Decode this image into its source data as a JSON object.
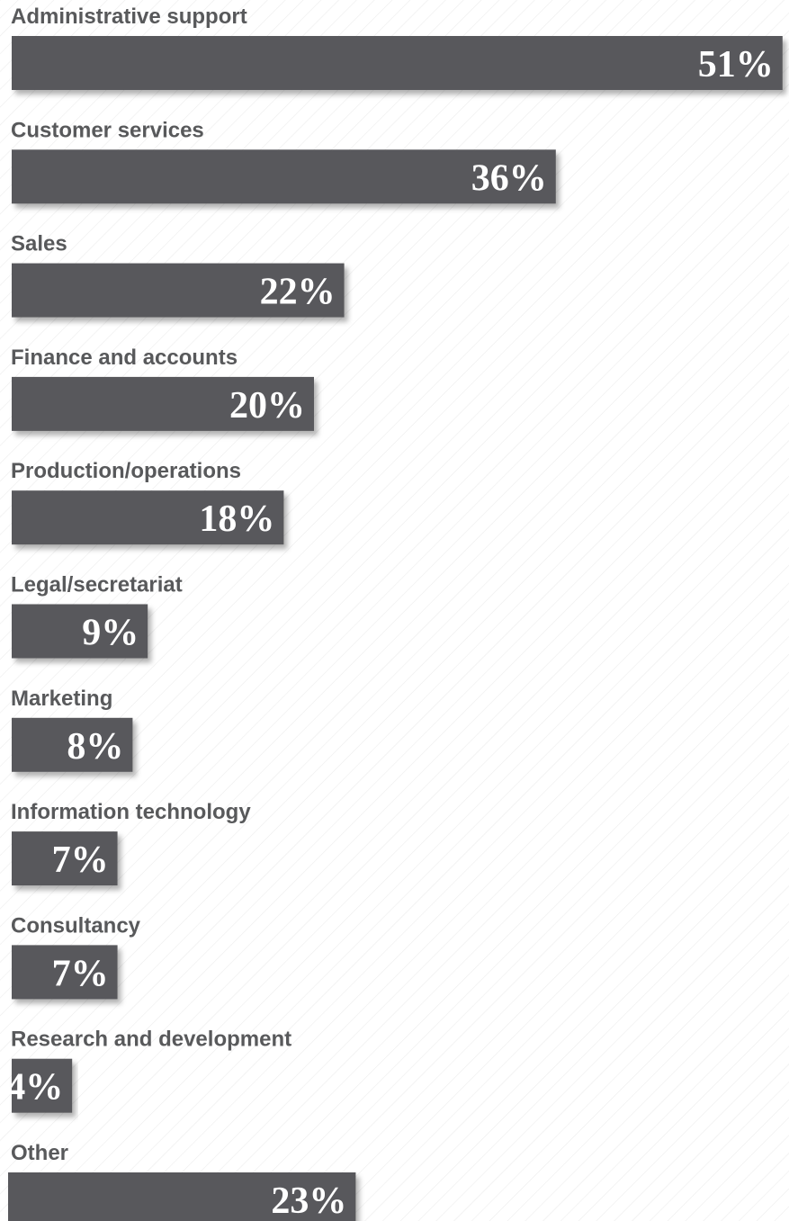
{
  "chart_data": {
    "type": "bar",
    "orientation": "horizontal",
    "categories": [
      "Administrative support",
      "Customer services",
      "Sales",
      "Finance and accounts",
      "Production/operations",
      "Legal/secretariat",
      "Marketing",
      "Information technology",
      "Consultancy",
      "Research and development",
      "Other"
    ],
    "values": [
      51,
      36,
      22,
      20,
      18,
      9,
      8,
      7,
      7,
      4,
      23
    ],
    "value_labels": [
      "51%",
      "36%",
      "22%",
      "20%",
      "18%",
      "9%",
      "8%",
      "7%",
      "7%",
      "4%",
      "23%"
    ],
    "color": "#58595b"
  }
}
